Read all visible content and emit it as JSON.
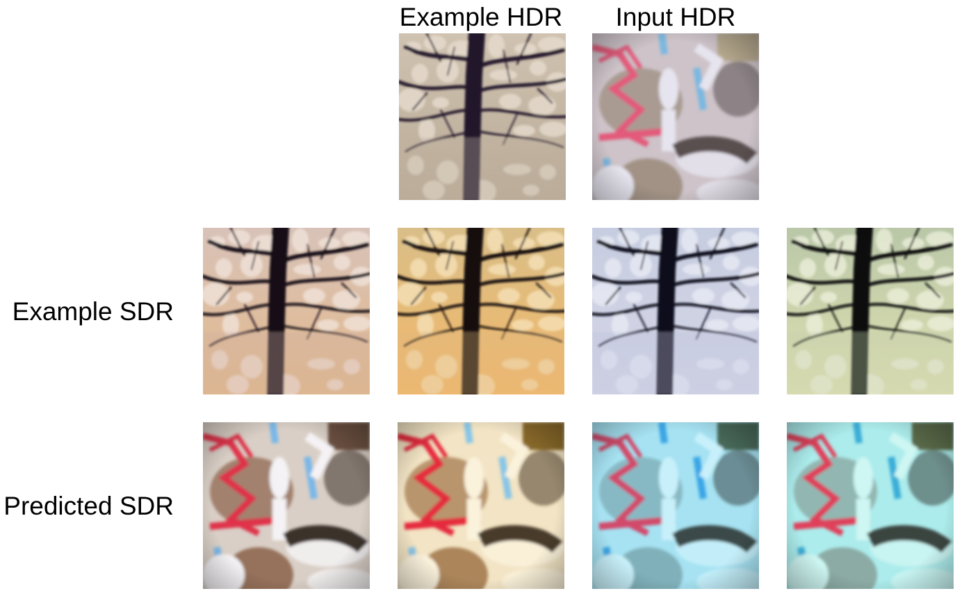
{
  "column_labels": {
    "example_hdr": "Example HDR",
    "input_hdr": "Input HDR"
  },
  "row_labels": {
    "example_sdr": "Example SDR",
    "predicted_sdr": "Predicted SDR"
  },
  "tiles": {
    "example_hdr": {
      "content": "tree",
      "colors": {
        "bg1": "#cfc2b0",
        "bg2": "#b8aa96",
        "leaf": "#e8ddd0",
        "dark": "#22192b",
        "haze": "#bfb2a0"
      }
    },
    "input_hdr": {
      "content": "objects",
      "colors": {
        "bg": "#cdc3c9",
        "warm": "#9a8a7a",
        "red": "#e35a7a",
        "blue": "#7ab8e0",
        "white": "#e6e4ee",
        "dark": "#5a5050",
        "corner": "#b6a98e"
      }
    },
    "example_sdr": [
      {
        "content": "tree",
        "colors": {
          "bg1": "#d8c2b8",
          "bg2": "#e3b98a",
          "leaf": "#f2e4dc",
          "dark": "#140c16",
          "haze": "#cdb0a0"
        }
      },
      {
        "content": "tree",
        "colors": {
          "bg1": "#d9be88",
          "bg2": "#f2b868",
          "leaf": "#f7e3bb",
          "dark": "#130c08",
          "haze": "#e0b880"
        }
      },
      {
        "content": "tree",
        "colors": {
          "bg1": "#c6cde0",
          "bg2": "#d6d6e6",
          "leaf": "#e9ecf6",
          "dark": "#100c1a",
          "haze": "#bcc4dc"
        }
      },
      {
        "content": "tree",
        "colors": {
          "bg1": "#b9c7a8",
          "bg2": "#dfe0b0",
          "leaf": "#eef0dc",
          "dark": "#0c100c",
          "haze": "#c7cfb0"
        }
      }
    ],
    "predicted_sdr": [
      {
        "content": "objects",
        "colors": {
          "bg": "#d9cfc6",
          "warm": "#8a6048",
          "red": "#e0304a",
          "blue": "#7ab8e8",
          "white": "#f4f2f4",
          "dark": "#3a302c",
          "corner": "#6a5040"
        }
      },
      {
        "content": "objects",
        "colors": {
          "bg": "#f2e4c4",
          "warm": "#a07448",
          "red": "#e62a3e",
          "blue": "#8ac6e6",
          "white": "#fbf2dc",
          "dark": "#4a3a2c",
          "corner": "#8a6a2a"
        }
      },
      {
        "content": "objects",
        "colors": {
          "bg": "#a6e2f2",
          "warm": "#7aa8b0",
          "red": "#d24a6a",
          "blue": "#3aa6e6",
          "white": "#c8f0fa",
          "dark": "#3a4848",
          "corner": "#4a6a5a"
        }
      },
      {
        "content": "objects",
        "colors": {
          "bg": "#acecec",
          "warm": "#86a098",
          "red": "#e0405a",
          "blue": "#3aaed8",
          "white": "#cef6f2",
          "dark": "#3a4440",
          "corner": "#5a6a4a"
        }
      }
    ]
  }
}
